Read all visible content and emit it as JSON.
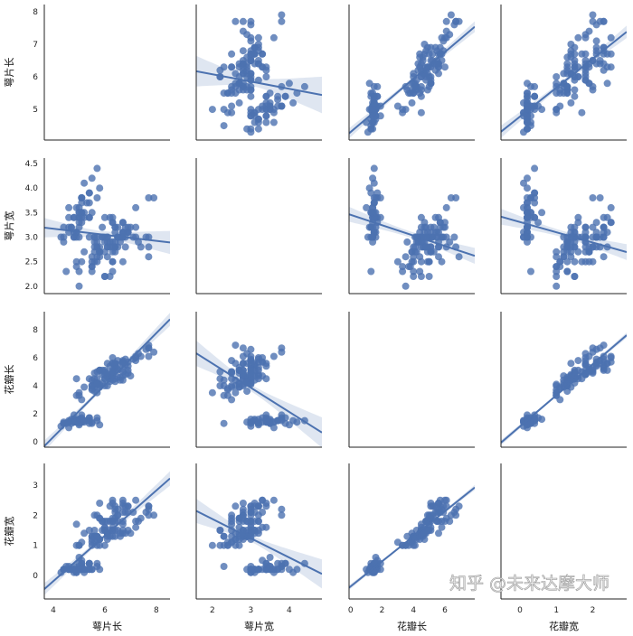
{
  "watermark": "知乎 @未来达摩大师",
  "chart_data": {
    "type": "scatter",
    "kind": "pairplot-regression",
    "color": "#4c72b0",
    "grid": false,
    "variables": [
      "萼片长",
      "萼片宽",
      "花瓣长",
      "花瓣宽"
    ],
    "limits": {
      "x": [
        [
          3.65,
          8.53
        ],
        [
          1.58,
          4.85
        ],
        [
          -0.1,
          7.9
        ],
        [
          -0.52,
          2.93
        ]
      ],
      "y": [
        [
          4.06,
          8.22
        ],
        [
          1.85,
          4.61
        ],
        [
          -0.4,
          9.3
        ],
        [
          -0.78,
          3.72
        ]
      ]
    },
    "ticks": {
      "x": [
        [
          "4",
          "6",
          "8"
        ],
        [
          "2",
          "3",
          "4"
        ],
        [
          "0",
          "2",
          "4",
          "6"
        ],
        [
          "0",
          "1",
          "2"
        ]
      ],
      "y": [
        [
          "5",
          "6",
          "7",
          "8"
        ],
        [
          "2.0",
          "2.5",
          "3.0",
          "3.5",
          "4.0",
          "4.5"
        ],
        [
          "0",
          "2",
          "4",
          "6",
          "8"
        ],
        [
          "0",
          "1",
          "2",
          "3"
        ]
      ]
    },
    "values": [
      [
        5.1,
        4.9,
        4.7,
        4.6,
        5.0,
        5.4,
        4.6,
        5.0,
        4.4,
        4.9,
        5.4,
        4.8,
        4.8,
        4.3,
        5.8,
        5.7,
        5.4,
        5.1,
        5.7,
        5.1,
        5.4,
        5.1,
        4.6,
        5.1,
        4.8,
        5.0,
        5.0,
        5.2,
        5.2,
        4.7,
        4.8,
        5.4,
        5.2,
        5.5,
        4.9,
        5.0,
        5.5,
        4.9,
        4.4,
        5.1,
        5.0,
        4.5,
        4.4,
        5.0,
        5.1,
        4.8,
        5.1,
        4.6,
        5.3,
        5.0,
        7.0,
        6.4,
        6.9,
        5.5,
        6.5,
        5.7,
        6.3,
        4.9,
        6.6,
        5.2,
        5.0,
        5.9,
        6.0,
        6.1,
        5.6,
        6.7,
        5.6,
        5.8,
        6.2,
        5.6,
        5.9,
        6.1,
        6.3,
        6.1,
        6.4,
        6.6,
        6.8,
        6.7,
        6.0,
        5.7,
        5.5,
        5.5,
        5.8,
        6.0,
        5.4,
        6.0,
        6.7,
        6.3,
        5.6,
        5.5,
        5.5,
        6.1,
        5.8,
        5.0,
        5.6,
        5.7,
        5.7,
        6.2,
        5.1,
        5.7,
        6.3,
        5.8,
        7.1,
        6.3,
        6.5,
        7.6,
        4.9,
        7.3,
        6.7,
        7.2,
        6.5,
        6.4,
        6.8,
        5.7,
        5.8,
        6.4,
        6.5,
        7.7,
        7.7,
        6.0,
        6.9,
        5.6,
        7.7,
        6.3,
        6.7,
        7.2,
        6.2,
        6.1,
        6.4,
        7.2,
        7.4,
        7.9,
        6.4,
        6.3,
        6.1,
        7.7,
        6.3,
        6.4,
        6.0,
        6.9,
        6.7,
        6.9,
        5.8,
        6.8,
        6.7,
        6.7,
        6.3,
        6.5,
        6.2,
        5.9
      ],
      [
        3.5,
        3.0,
        3.2,
        3.1,
        3.6,
        3.9,
        3.4,
        3.4,
        2.9,
        3.1,
        3.7,
        3.4,
        3.0,
        3.0,
        4.0,
        4.4,
        3.9,
        3.5,
        3.8,
        3.8,
        3.4,
        3.7,
        3.6,
        3.3,
        3.4,
        3.0,
        3.4,
        3.5,
        3.4,
        3.2,
        3.1,
        3.4,
        4.1,
        4.2,
        3.1,
        3.2,
        3.5,
        3.6,
        3.0,
        3.4,
        3.5,
        2.3,
        3.2,
        3.5,
        3.8,
        3.0,
        3.8,
        3.2,
        3.7,
        3.3,
        3.2,
        3.2,
        3.1,
        2.3,
        2.8,
        2.8,
        3.3,
        2.4,
        2.9,
        2.7,
        2.0,
        3.0,
        2.2,
        2.9,
        2.9,
        3.1,
        3.0,
        2.7,
        2.2,
        2.5,
        3.2,
        2.8,
        2.5,
        2.8,
        2.9,
        3.0,
        2.8,
        3.0,
        2.9,
        2.6,
        2.4,
        2.4,
        2.7,
        2.7,
        3.0,
        3.4,
        3.1,
        2.3,
        3.0,
        2.5,
        2.6,
        3.0,
        2.6,
        2.3,
        2.7,
        3.0,
        2.9,
        2.9,
        2.5,
        2.8,
        3.3,
        2.7,
        3.0,
        2.9,
        3.0,
        3.0,
        2.5,
        2.9,
        2.5,
        3.6,
        3.2,
        2.7,
        3.0,
        2.5,
        2.8,
        3.2,
        3.0,
        3.8,
        2.6,
        2.2,
        3.2,
        2.8,
        2.8,
        2.7,
        3.3,
        3.2,
        2.8,
        3.0,
        2.8,
        3.0,
        2.8,
        3.8,
        2.8,
        2.8,
        2.6,
        3.0,
        3.4,
        3.1,
        3.0,
        3.1,
        3.1,
        3.1,
        2.7,
        3.2,
        3.3,
        3.0,
        2.5,
        3.0,
        3.4,
        3.0
      ],
      [
        1.4,
        1.4,
        1.3,
        1.5,
        1.4,
        1.7,
        1.4,
        1.5,
        1.4,
        1.5,
        1.5,
        1.6,
        1.4,
        1.1,
        1.2,
        1.5,
        1.3,
        1.4,
        1.7,
        1.5,
        1.7,
        1.5,
        1.0,
        1.7,
        1.9,
        1.6,
        1.6,
        1.5,
        1.4,
        1.6,
        1.6,
        1.5,
        1.5,
        1.4,
        1.5,
        1.2,
        1.3,
        1.4,
        1.3,
        1.5,
        1.3,
        1.3,
        1.3,
        1.6,
        1.9,
        1.4,
        1.6,
        1.4,
        1.5,
        1.4,
        4.7,
        4.5,
        4.9,
        4.0,
        4.6,
        4.5,
        4.7,
        3.3,
        4.6,
        3.9,
        3.5,
        4.2,
        4.0,
        4.7,
        3.6,
        4.4,
        4.5,
        4.1,
        4.5,
        3.9,
        4.8,
        4.0,
        4.9,
        4.7,
        4.3,
        4.4,
        4.8,
        5.0,
        4.5,
        3.5,
        3.8,
        3.7,
        3.9,
        5.1,
        4.5,
        4.5,
        4.7,
        4.4,
        4.1,
        4.0,
        4.4,
        4.6,
        4.0,
        3.3,
        4.2,
        4.2,
        4.2,
        4.3,
        3.0,
        4.1,
        6.0,
        5.1,
        5.9,
        5.6,
        5.8,
        6.6,
        4.5,
        6.3,
        5.8,
        6.1,
        5.1,
        5.3,
        5.5,
        5.0,
        5.1,
        5.3,
        5.5,
        6.7,
        6.9,
        5.0,
        5.7,
        4.9,
        6.7,
        4.9,
        5.7,
        6.0,
        4.8,
        4.9,
        5.6,
        5.8,
        6.1,
        6.4,
        5.6,
        5.1,
        5.6,
        6.1,
        5.6,
        5.5,
        4.8,
        5.4,
        5.6,
        5.1,
        5.1,
        5.9,
        5.7,
        5.2,
        5.0,
        5.2,
        5.4,
        5.1
      ],
      [
        0.2,
        0.2,
        0.2,
        0.2,
        0.2,
        0.4,
        0.3,
        0.2,
        0.2,
        0.1,
        0.2,
        0.2,
        0.1,
        0.1,
        0.2,
        0.4,
        0.4,
        0.3,
        0.3,
        0.3,
        0.2,
        0.4,
        0.2,
        0.5,
        0.2,
        0.2,
        0.4,
        0.2,
        0.2,
        0.2,
        0.2,
        0.4,
        0.1,
        0.2,
        0.2,
        0.2,
        0.2,
        0.1,
        0.2,
        0.2,
        0.3,
        0.3,
        0.2,
        0.6,
        0.4,
        0.3,
        0.2,
        0.2,
        0.2,
        0.2,
        1.4,
        1.5,
        1.5,
        1.3,
        1.5,
        1.3,
        1.6,
        1.0,
        1.3,
        1.4,
        1.0,
        1.5,
        1.0,
        1.4,
        1.3,
        1.4,
        1.5,
        1.0,
        1.5,
        1.1,
        1.8,
        1.3,
        1.5,
        1.2,
        1.3,
        1.4,
        1.4,
        1.7,
        1.5,
        1.0,
        1.1,
        1.0,
        1.2,
        1.6,
        1.5,
        1.6,
        1.5,
        1.3,
        1.3,
        1.3,
        1.2,
        1.4,
        1.2,
        1.0,
        1.3,
        1.2,
        1.3,
        1.3,
        1.1,
        1.3,
        2.5,
        1.9,
        2.1,
        1.8,
        2.2,
        2.1,
        1.7,
        1.8,
        1.8,
        2.5,
        2.0,
        1.9,
        2.1,
        2.0,
        2.4,
        2.3,
        1.8,
        2.2,
        2.3,
        1.5,
        2.3,
        2.0,
        2.0,
        1.8,
        2.1,
        1.8,
        1.8,
        1.8,
        2.1,
        1.6,
        1.9,
        2.0,
        2.2,
        1.5,
        1.4,
        2.3,
        2.4,
        1.8,
        1.8,
        2.1,
        2.4,
        2.3,
        1.9,
        2.3,
        2.5,
        2.3,
        1.9,
        2.0,
        2.3,
        1.8
      ]
    ]
  }
}
